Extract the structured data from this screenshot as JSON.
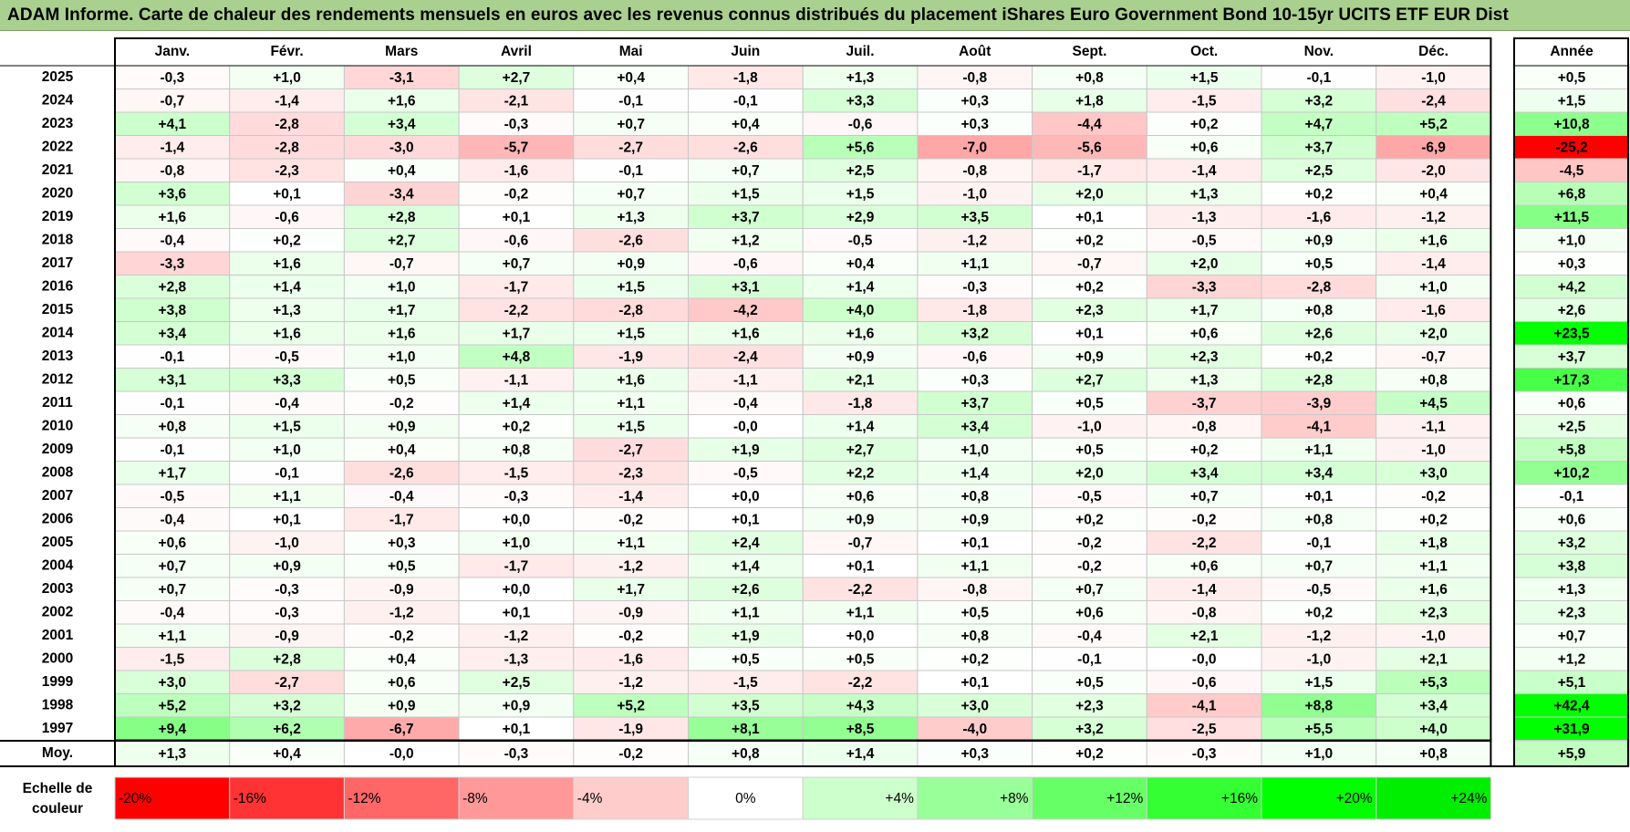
{
  "title": "ADAM Informe. Carte de chaleur des rendements mensuels en euros avec les revenus connus distribués du placement iShares Euro Government Bond 10-15yr UCITS ETF EUR Dist",
  "chart_data": {
    "type": "heatmap",
    "columns": [
      "Janv.",
      "Févr.",
      "Mars",
      "Avril",
      "Mai",
      "Juin",
      "Juil.",
      "Août",
      "Sept.",
      "Oct.",
      "Nov.",
      "Déc."
    ],
    "year_header": "Année",
    "rows": [
      {
        "year": "2025",
        "values": [
          -0.3,
          1.0,
          -3.1,
          2.7,
          0.4,
          -1.8,
          1.3,
          -0.8,
          0.8,
          1.5,
          -0.1,
          -1.0
        ],
        "annual": 0.5
      },
      {
        "year": "2024",
        "values": [
          -0.7,
          -1.4,
          1.6,
          -2.1,
          -0.1,
          -0.1,
          3.3,
          0.3,
          1.8,
          -1.5,
          3.2,
          -2.4
        ],
        "annual": 1.5
      },
      {
        "year": "2023",
        "values": [
          4.1,
          -2.8,
          3.4,
          -0.3,
          0.7,
          0.4,
          -0.6,
          0.3,
          -4.4,
          0.2,
          4.7,
          5.2
        ],
        "annual": 10.8
      },
      {
        "year": "2022",
        "values": [
          -1.4,
          -2.8,
          -3.0,
          -5.7,
          -2.7,
          -2.6,
          5.6,
          -7.0,
          -5.6,
          0.6,
          3.7,
          -6.9
        ],
        "annual": -25.2
      },
      {
        "year": "2021",
        "values": [
          -0.8,
          -2.3,
          0.4,
          -1.6,
          -0.1,
          0.7,
          2.5,
          -0.8,
          -1.7,
          -1.4,
          2.5,
          -2.0
        ],
        "annual": -4.5
      },
      {
        "year": "2020",
        "values": [
          3.6,
          0.1,
          -3.4,
          -0.2,
          0.7,
          1.5,
          1.5,
          -1.0,
          2.0,
          1.3,
          0.2,
          0.4
        ],
        "annual": 6.8
      },
      {
        "year": "2019",
        "values": [
          1.6,
          -0.6,
          2.8,
          0.1,
          1.3,
          3.7,
          2.9,
          3.5,
          0.1,
          -1.3,
          -1.6,
          -1.2
        ],
        "annual": 11.5
      },
      {
        "year": "2018",
        "values": [
          -0.4,
          0.2,
          2.7,
          -0.6,
          -2.6,
          1.2,
          -0.5,
          -1.2,
          0.2,
          -0.5,
          0.9,
          1.6
        ],
        "annual": 1.0
      },
      {
        "year": "2017",
        "values": [
          -3.3,
          1.6,
          -0.7,
          0.7,
          0.9,
          -0.6,
          0.4,
          1.1,
          -0.7,
          2.0,
          0.5,
          -1.4
        ],
        "annual": 0.3
      },
      {
        "year": "2016",
        "values": [
          2.8,
          1.4,
          1.0,
          -1.7,
          1.5,
          3.1,
          1.4,
          -0.3,
          0.2,
          -3.3,
          -2.8,
          1.0
        ],
        "annual": 4.2
      },
      {
        "year": "2015",
        "values": [
          3.8,
          1.3,
          1.7,
          -2.2,
          -2.8,
          -4.2,
          4.0,
          -1.8,
          2.3,
          1.7,
          0.8,
          -1.6
        ],
        "annual": 2.6
      },
      {
        "year": "2014",
        "values": [
          3.4,
          1.6,
          1.6,
          1.7,
          1.5,
          1.6,
          1.6,
          3.2,
          0.1,
          0.6,
          2.6,
          2.0
        ],
        "annual": 23.5
      },
      {
        "year": "2013",
        "values": [
          -0.1,
          -0.5,
          1.0,
          4.8,
          -1.9,
          -2.4,
          0.9,
          -0.6,
          0.9,
          2.3,
          0.2,
          -0.7
        ],
        "annual": 3.7
      },
      {
        "year": "2012",
        "values": [
          3.1,
          3.3,
          0.5,
          -1.1,
          1.6,
          -1.1,
          2.1,
          0.3,
          2.7,
          1.3,
          2.8,
          0.8
        ],
        "annual": 17.3
      },
      {
        "year": "2011",
        "values": [
          -0.1,
          -0.4,
          -0.2,
          1.4,
          1.1,
          -0.4,
          -1.8,
          3.7,
          0.5,
          -3.7,
          -3.9,
          4.5
        ],
        "annual": 0.6
      },
      {
        "year": "2010",
        "values": [
          0.8,
          1.5,
          0.9,
          0.2,
          1.5,
          -0.0,
          1.4,
          3.4,
          -1.0,
          -0.8,
          -4.1,
          -1.1
        ],
        "annual": 2.5
      },
      {
        "year": "2009",
        "values": [
          -0.1,
          1.0,
          0.4,
          0.8,
          -2.7,
          1.9,
          2.7,
          1.0,
          0.5,
          0.2,
          1.1,
          -1.0
        ],
        "annual": 5.8
      },
      {
        "year": "2008",
        "values": [
          1.7,
          -0.1,
          -2.6,
          -1.5,
          -2.3,
          -0.5,
          2.2,
          1.4,
          2.0,
          3.4,
          3.4,
          3.0
        ],
        "annual": 10.2
      },
      {
        "year": "2007",
        "values": [
          -0.5,
          1.1,
          -0.4,
          -0.3,
          -1.4,
          0.0,
          0.6,
          0.8,
          -0.5,
          0.7,
          0.1,
          -0.2
        ],
        "annual": -0.1
      },
      {
        "year": "2006",
        "values": [
          -0.4,
          0.1,
          -1.7,
          0.0,
          -0.2,
          0.1,
          0.9,
          0.9,
          0.2,
          -0.2,
          0.8,
          0.2
        ],
        "annual": 0.6
      },
      {
        "year": "2005",
        "values": [
          0.6,
          -1.0,
          0.3,
          1.0,
          1.1,
          2.4,
          -0.7,
          0.1,
          -0.2,
          -2.2,
          -0.1,
          1.8
        ],
        "annual": 3.2
      },
      {
        "year": "2004",
        "values": [
          0.7,
          0.9,
          0.5,
          -1.7,
          -1.2,
          1.4,
          0.1,
          1.1,
          -0.2,
          0.6,
          0.7,
          1.1
        ],
        "annual": 3.8
      },
      {
        "year": "2003",
        "values": [
          0.7,
          -0.3,
          -0.9,
          0.0,
          1.7,
          2.6,
          -2.2,
          -0.8,
          0.7,
          -1.4,
          -0.5,
          1.6
        ],
        "annual": 1.3
      },
      {
        "year": "2002",
        "values": [
          -0.4,
          -0.3,
          -1.2,
          0.1,
          -0.9,
          1.1,
          1.1,
          0.5,
          0.6,
          -0.8,
          0.2,
          2.3
        ],
        "annual": 2.3
      },
      {
        "year": "2001",
        "values": [
          1.1,
          -0.9,
          -0.2,
          -1.2,
          -0.2,
          1.9,
          0.0,
          0.8,
          -0.4,
          2.1,
          -1.2,
          -1.0
        ],
        "annual": 0.7
      },
      {
        "year": "2000",
        "values": [
          -1.5,
          2.8,
          0.4,
          -1.3,
          -1.6,
          0.5,
          0.5,
          0.2,
          -0.1,
          -0.0,
          -1.0,
          2.1
        ],
        "annual": 1.2
      },
      {
        "year": "1999",
        "values": [
          3.0,
          -2.7,
          0.6,
          2.5,
          -1.2,
          -1.5,
          -2.2,
          0.1,
          0.5,
          -0.6,
          1.5,
          5.3
        ],
        "annual": 5.1
      },
      {
        "year": "1998",
        "values": [
          5.2,
          3.2,
          0.9,
          0.9,
          5.2,
          3.5,
          4.3,
          3.0,
          2.3,
          -4.1,
          8.8,
          3.4
        ],
        "annual": 42.4
      },
      {
        "year": "1997",
        "values": [
          9.4,
          6.2,
          -6.7,
          0.1,
          -1.9,
          8.1,
          8.5,
          -4.0,
          3.2,
          -2.5,
          5.5,
          4.0
        ],
        "annual": 31.9
      }
    ],
    "average": {
      "label": "Moy.",
      "values": [
        1.3,
        0.4,
        -0.0,
        -0.3,
        -0.2,
        0.8,
        1.4,
        0.3,
        0.2,
        -0.3,
        1.0,
        0.8
      ],
      "annual": 5.9
    },
    "color_scale": {
      "label": "Echelle de couleur",
      "stops": [
        {
          "label": "-20%",
          "value": -20,
          "color": "#ff0000"
        },
        {
          "label": "-16%",
          "value": -16,
          "color": "#ff3333"
        },
        {
          "label": "-12%",
          "value": -12,
          "color": "#ff6666"
        },
        {
          "label": "-8%",
          "value": -8,
          "color": "#ff9999"
        },
        {
          "label": "-4%",
          "value": -4,
          "color": "#ffcccc"
        },
        {
          "label": "0%",
          "value": 0,
          "color": "#ffffff"
        },
        {
          "label": "+4%",
          "value": 4,
          "color": "#ccffcc"
        },
        {
          "label": "+8%",
          "value": 8,
          "color": "#99ff99"
        },
        {
          "label": "+12%",
          "value": 12,
          "color": "#66ff66"
        },
        {
          "label": "+16%",
          "value": 16,
          "color": "#33ff33"
        },
        {
          "label": "+20%",
          "value": 20,
          "color": "#00ff00"
        },
        {
          "label": "+24%",
          "value": 24,
          "color": "#00ee00"
        }
      ]
    },
    "colors": {
      "title_band": "#a9d08e",
      "grid": "#bfbfbf",
      "frame": "#000000"
    }
  }
}
